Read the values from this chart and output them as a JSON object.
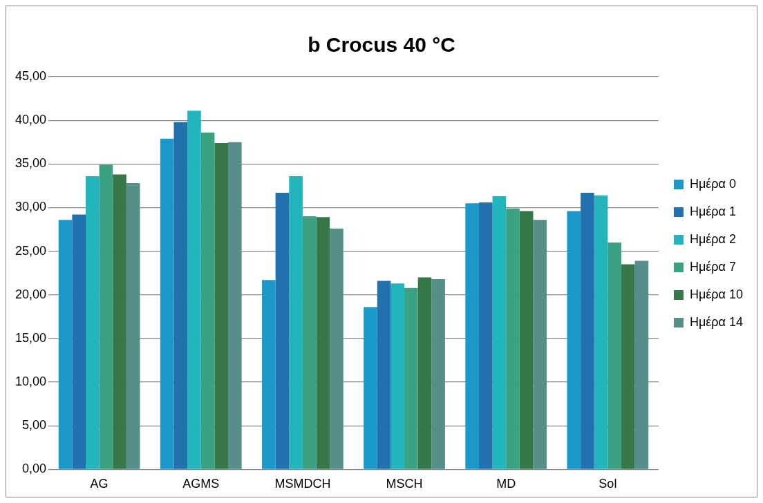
{
  "chart_data": {
    "type": "bar",
    "title": "b Crocus 40 °C",
    "categories": [
      "AG",
      "AGMS",
      "MSMDCH",
      "MSCH",
      "MD",
      "Sol"
    ],
    "series": [
      {
        "name": "Ημέρα 0",
        "color": "#1a98c9",
        "values": [
          28.6,
          37.9,
          21.7,
          18.6,
          30.5,
          29.6
        ]
      },
      {
        "name": "Ημέρα 1",
        "color": "#2171ae",
        "values": [
          29.2,
          39.8,
          31.7,
          21.6,
          30.6,
          31.7
        ]
      },
      {
        "name": "Ημέρα 2",
        "color": "#22b5bc",
        "values": [
          33.6,
          41.1,
          33.6,
          21.3,
          31.3,
          31.4
        ]
      },
      {
        "name": "Ημέρα 7",
        "color": "#3aa283",
        "values": [
          34.9,
          38.6,
          29.0,
          20.8,
          29.9,
          26.0
        ]
      },
      {
        "name": "Ημέρα 10",
        "color": "#367849",
        "values": [
          33.8,
          37.4,
          28.9,
          22.0,
          29.6,
          23.5
        ]
      },
      {
        "name": "Ημέρα 14",
        "color": "#568f89",
        "values": [
          32.8,
          37.5,
          27.6,
          21.8,
          28.6,
          23.9
        ]
      }
    ],
    "ylim": [
      0,
      45
    ],
    "yticks": [
      {
        "value": 0,
        "label": "0,00"
      },
      {
        "value": 5,
        "label": "5,00"
      },
      {
        "value": 10,
        "label": "10,00"
      },
      {
        "value": 15,
        "label": "15,00"
      },
      {
        "value": 20,
        "label": "20,00"
      },
      {
        "value": 25,
        "label": "25,00"
      },
      {
        "value": 30,
        "label": "30,00"
      },
      {
        "value": 35,
        "label": "35,00"
      },
      {
        "value": 40,
        "label": "40,00"
      },
      {
        "value": 45,
        "label": "45,00"
      }
    ],
    "grid": "y",
    "legend": "right"
  }
}
